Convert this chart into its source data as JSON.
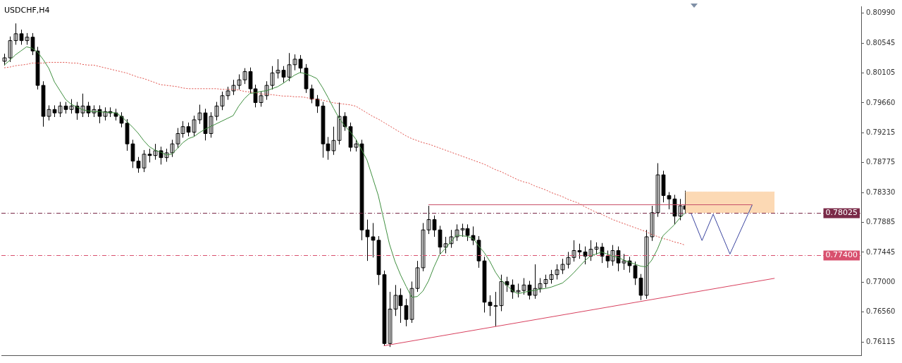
{
  "chart_data": {
    "type": "candlestick",
    "title": "USDCHF,H4",
    "color": "#000000",
    "tick_labels": "y",
    "categories": [
      null,
      null,
      null,
      null,
      null,
      null,
      null,
      null,
      null,
      null,
      null,
      null,
      null,
      null,
      null,
      null,
      null,
      null,
      null,
      null,
      null,
      null,
      null,
      null,
      null,
      null,
      null,
      null,
      null,
      null,
      null,
      null,
      null,
      null,
      null,
      null,
      null,
      null,
      null,
      null,
      null,
      null,
      null,
      null,
      null,
      null,
      null,
      null,
      null,
      null,
      null,
      null,
      null,
      null,
      null,
      null,
      null,
      null,
      null,
      null,
      null,
      null,
      null,
      null,
      null,
      null,
      null,
      null,
      null,
      null,
      null,
      null,
      null,
      null,
      null,
      null,
      null,
      null,
      null,
      null,
      null,
      null,
      null,
      null,
      null,
      null,
      null,
      null,
      null,
      null,
      null,
      null,
      null,
      null,
      null,
      null,
      null,
      null,
      null,
      null,
      null,
      null,
      null,
      null,
      null,
      null,
      null,
      null,
      null,
      null,
      null,
      null,
      null,
      null,
      null,
      null,
      null,
      null,
      null,
      null,
      null,
      null,
      null,
      null,
      null,
      null,
      null,
      null,
      null,
      null,
      null,
      null,
      null,
      null,
      null,
      null,
      null,
      null,
      null,
      null,
      null,
      null,
      null,
      null,
      null,
      null,
      null,
      null,
      null,
      null,
      null,
      null,
      null,
      null
    ],
    "ylim": [
      0.7592,
      0.8109
    ],
    "yticks": [
      {
        "value": 0.8099,
        "label": "0.80990"
      },
      0.80545,
      0.80105,
      {
        "value": 0.7966,
        "label": "0.79660"
      },
      0.79215,
      0.78775,
      {
        "value": 0.7833,
        "label": "0.78330"
      },
      0.77885,
      0.77445,
      {
        "value": 0.77,
        "label": "0.77000"
      },
      {
        "value": 0.7656,
        "label": "0.76560"
      },
      0.76115
    ],
    "ref_lines": [
      {
        "axis": "y",
        "value": 0.78025,
        "label": "0.78025",
        "color": "#7a2a48",
        "line_style": "dashed"
      },
      {
        "axis": "y",
        "value": 0.774,
        "label": "0.77400",
        "color": "#d8506e",
        "line_style": "dashed"
      }
    ],
    "ohlc": [
      [
        0.80276,
        0.80388,
        0.80215,
        0.80327
      ],
      [
        0.80327,
        0.80643,
        0.80266,
        0.80582
      ],
      [
        0.80582,
        0.80837,
        0.80521,
        0.80684
      ],
      [
        0.80684,
        0.80745,
        0.80521,
        0.80582
      ],
      [
        0.80582,
        0.80694,
        0.80521,
        0.80633
      ],
      [
        0.80633,
        0.80694,
        0.80368,
        0.80429
      ],
      [
        0.80429,
        0.8049,
        0.79858,
        0.79919
      ],
      [
        0.79919,
        0.7998,
        0.79307,
        0.7946
      ],
      [
        0.7946,
        0.79623,
        0.79399,
        0.79562
      ],
      [
        0.79562,
        0.79623,
        0.7945,
        0.79511
      ],
      [
        0.79511,
        0.79674,
        0.7945,
        0.79613
      ],
      [
        0.79613,
        0.79674,
        0.79501,
        0.79562
      ],
      [
        0.79562,
        0.79715,
        0.79501,
        0.79613
      ],
      [
        0.79613,
        0.79674,
        0.79409,
        0.79511
      ],
      [
        0.79511,
        0.79797,
        0.7945,
        0.79613
      ],
      [
        0.79613,
        0.79674,
        0.7945,
        0.79511
      ],
      [
        0.79511,
        0.79623,
        0.7945,
        0.79562
      ],
      [
        0.79562,
        0.79623,
        0.79358,
        0.7946
      ],
      [
        0.7946,
        0.79593,
        0.79399,
        0.79531
      ],
      [
        0.79531,
        0.79593,
        0.7945,
        0.79511
      ],
      [
        0.79511,
        0.79572,
        0.79399,
        0.7946
      ],
      [
        0.7946,
        0.79521,
        0.79297,
        0.79358
      ],
      [
        0.79358,
        0.79419,
        0.7895,
        0.79052
      ],
      [
        0.79052,
        0.79113,
        0.78695,
        0.78797
      ],
      [
        0.78797,
        0.78858,
        0.78624,
        0.78695
      ],
      [
        0.78695,
        0.7896,
        0.78634,
        0.78899
      ],
      [
        0.78899,
        0.78981,
        0.78777,
        0.78879
      ],
      [
        0.78879,
        0.79052,
        0.78817,
        0.7895
      ],
      [
        0.7895,
        0.79011,
        0.78746,
        0.78848
      ],
      [
        0.78848,
        0.78981,
        0.78787,
        0.78919
      ],
      [
        0.78919,
        0.79113,
        0.78858,
        0.79052
      ],
      [
        0.79052,
        0.79287,
        0.78991,
        0.79205
      ],
      [
        0.79205,
        0.79389,
        0.79144,
        0.79307
      ],
      [
        0.79307,
        0.79368,
        0.79164,
        0.79225
      ],
      [
        0.79225,
        0.7947,
        0.79164,
        0.79409
      ],
      [
        0.79409,
        0.79633,
        0.79348,
        0.79511
      ],
      [
        0.79511,
        0.79572,
        0.79103,
        0.79205
      ],
      [
        0.79205,
        0.79521,
        0.79144,
        0.7946
      ],
      [
        0.7946,
        0.79674,
        0.79399,
        0.79613
      ],
      [
        0.79613,
        0.79827,
        0.79552,
        0.79766
      ],
      [
        0.79766,
        0.79899,
        0.79705,
        0.79837
      ],
      [
        0.79837,
        0.80001,
        0.79776,
        0.79919
      ],
      [
        0.79919,
        0.80082,
        0.79858,
        0.80001
      ],
      [
        0.80001,
        0.80174,
        0.79939,
        0.80123
      ],
      [
        0.80123,
        0.80184,
        0.79807,
        0.79868
      ],
      [
        0.79868,
        0.79929,
        0.79593,
        0.79664
      ],
      [
        0.79664,
        0.79827,
        0.79603,
        0.79766
      ],
      [
        0.79766,
        0.7998,
        0.79705,
        0.79919
      ],
      [
        0.79919,
        0.80205,
        0.79858,
        0.80103
      ],
      [
        0.80103,
        0.80307,
        0.80021,
        0.80143
      ],
      [
        0.80143,
        0.80205,
        0.7996,
        0.80041
      ],
      [
        0.80041,
        0.80398,
        0.7998,
        0.80225
      ],
      [
        0.80225,
        0.80378,
        0.80143,
        0.80307
      ],
      [
        0.80307,
        0.80368,
        0.80103,
        0.80174
      ],
      [
        0.80174,
        0.80235,
        0.79807,
        0.79868
      ],
      [
        0.79868,
        0.79929,
        0.79654,
        0.79715
      ],
      [
        0.79715,
        0.79776,
        0.79511,
        0.79613
      ],
      [
        0.79613,
        0.79674,
        0.78848,
        0.79052
      ],
      [
        0.79052,
        0.79154,
        0.78817,
        0.7895
      ],
      [
        0.7895,
        0.79307,
        0.78889,
        0.79103
      ],
      [
        0.79103,
        0.79664,
        0.79042,
        0.7946
      ],
      [
        0.7946,
        0.79521,
        0.79246,
        0.79307
      ],
      [
        0.79307,
        0.79368,
        0.7894,
        0.79001
      ],
      [
        0.79001,
        0.79113,
        0.7894,
        0.79052
      ],
      [
        0.79052,
        0.79113,
        0.77624,
        0.77777
      ],
      [
        0.77777,
        0.7793,
        0.77318,
        0.77675
      ],
      [
        0.77675,
        0.77879,
        0.77369,
        0.77624
      ],
      [
        0.77624,
        0.77685,
        0.76961,
        0.77114
      ],
      [
        0.77114,
        0.77175,
        0.76063,
        0.76094
      ],
      [
        0.76094,
        0.76859,
        0.76043,
        0.76604
      ],
      [
        0.76604,
        0.76961,
        0.76502,
        0.76808
      ],
      [
        0.76808,
        0.7691,
        0.764,
        0.76655
      ],
      [
        0.76655,
        0.76757,
        0.76349,
        0.76451
      ],
      [
        0.76451,
        0.77012,
        0.764,
        0.7691
      ],
      [
        0.7691,
        0.77318,
        0.76859,
        0.77216
      ],
      [
        0.77216,
        0.77879,
        0.77165,
        0.77777
      ],
      [
        0.77777,
        0.78134,
        0.77716,
        0.7793
      ],
      [
        0.7793,
        0.77991,
        0.77675,
        0.77777
      ],
      [
        0.77777,
        0.77838,
        0.7742,
        0.77522
      ],
      [
        0.77522,
        0.77675,
        0.7743,
        0.77573
      ],
      [
        0.77573,
        0.77777,
        0.77512,
        0.77675
      ],
      [
        0.77675,
        0.77859,
        0.77614,
        0.77777
      ],
      [
        0.77777,
        0.77869,
        0.77675,
        0.77797
      ],
      [
        0.77797,
        0.77859,
        0.77614,
        0.77695
      ],
      [
        0.77695,
        0.77828,
        0.77553,
        0.77624
      ],
      [
        0.77624,
        0.77685,
        0.77216,
        0.77318
      ],
      [
        0.77318,
        0.77379,
        0.76553,
        0.76706
      ],
      [
        0.76706,
        0.76808,
        0.76502,
        0.76655
      ],
      [
        0.76655,
        0.76859,
        0.76349,
        0.76655
      ],
      [
        0.76655,
        0.77114,
        0.76573,
        0.77012
      ],
      [
        0.77012,
        0.77083,
        0.76859,
        0.76961
      ],
      [
        0.76961,
        0.77043,
        0.76757,
        0.76859
      ],
      [
        0.76859,
        0.76981,
        0.76777,
        0.76879
      ],
      [
        0.76879,
        0.77063,
        0.76818,
        0.76961
      ],
      [
        0.76961,
        0.77022,
        0.76747,
        0.76808
      ],
      [
        0.76808,
        0.77267,
        0.76757,
        0.7691
      ],
      [
        0.7691,
        0.77063,
        0.76849,
        0.76981
      ],
      [
        0.76981,
        0.77114,
        0.7692,
        0.77043
      ],
      [
        0.77043,
        0.77185,
        0.76981,
        0.77114
      ],
      [
        0.77114,
        0.77267,
        0.77043,
        0.77185
      ],
      [
        0.77185,
        0.77349,
        0.77124,
        0.77267
      ],
      [
        0.77267,
        0.77451,
        0.77206,
        0.77369
      ],
      [
        0.77369,
        0.77624,
        0.77308,
        0.77471
      ],
      [
        0.77471,
        0.77573,
        0.77349,
        0.77451
      ],
      [
        0.77451,
        0.77532,
        0.77267,
        0.77389
      ],
      [
        0.77389,
        0.77624,
        0.77318,
        0.77491
      ],
      [
        0.77491,
        0.77593,
        0.7741,
        0.77522
      ],
      [
        0.77522,
        0.77583,
        0.77287,
        0.77389
      ],
      [
        0.77389,
        0.77471,
        0.77216,
        0.77318
      ],
      [
        0.77318,
        0.77553,
        0.77247,
        0.77471
      ],
      [
        0.77471,
        0.77532,
        0.77165,
        0.77287
      ],
      [
        0.77287,
        0.7742,
        0.77185,
        0.77318
      ],
      [
        0.77318,
        0.77379,
        0.77145,
        0.77247
      ],
      [
        0.77247,
        0.77308,
        0.76961,
        0.77063
      ],
      [
        0.77063,
        0.77124,
        0.76737,
        0.76808
      ],
      [
        0.76808,
        0.77777,
        0.76757,
        0.77675
      ],
      [
        0.77675,
        0.78134,
        0.77614,
        0.78032
      ],
      [
        0.78032,
        0.78766,
        0.77971,
        0.78593
      ],
      [
        0.78593,
        0.78654,
        0.78185,
        0.78287
      ],
      [
        0.78287,
        0.78338,
        0.78083,
        0.78236
      ],
      [
        0.78236,
        0.78297,
        0.77859,
        0.77981
      ],
      [
        0.77981,
        0.78236,
        0.7792,
        0.78134
      ],
      [
        0.78134,
        0.78358,
        0.78022,
        0.78083
      ],
      null,
      null,
      null,
      null,
      null,
      null,
      null,
      null,
      null,
      null,
      null,
      null,
      null,
      null,
      null,
      null,
      null,
      null,
      null,
      null,
      null,
      null,
      null,
      null,
      null,
      null,
      null,
      null,
      null,
      null,
      null
    ],
    "series": [
      {
        "type": "line",
        "color": "#fcd9b4",
        "values": [
          null,
          null,
          null,
          null,
          null,
          null,
          null,
          null,
          null,
          null,
          null,
          null,
          null,
          null,
          null,
          null,
          null,
          null,
          null,
          null,
          null,
          null,
          null,
          null,
          null,
          null,
          null,
          null,
          null,
          null,
          null,
          null,
          null,
          null,
          null,
          null,
          null,
          null,
          null,
          null,
          null,
          null,
          null,
          null,
          null,
          null,
          null,
          null,
          null,
          null,
          null,
          null,
          null,
          null,
          null,
          null,
          null,
          null,
          null,
          null,
          null,
          null,
          null,
          null,
          null,
          null,
          null,
          null,
          null,
          null,
          null,
          null,
          null,
          null,
          null,
          null,
          null,
          null,
          null,
          null,
          null,
          null,
          null,
          null,
          null,
          null,
          null,
          null,
          null,
          null,
          null,
          null,
          null,
          null,
          null,
          null,
          null,
          null,
          null,
          null,
          null,
          null,
          null,
          null,
          null,
          null,
          null,
          null,
          null,
          null,
          null,
          null,
          null,
          null,
          null,
          null,
          null,
          null,
          null,
          null,
          null,
          null,
          0.7834,
          0.7834,
          0.7834,
          0.7834,
          0.7834,
          0.7834,
          0.7834,
          0.7834,
          0.7834,
          0.7834,
          0.7834,
          0.7834,
          0.7834,
          0.7834,
          0.7834,
          0.7834,
          0.7834,
          null,
          null,
          null,
          null,
          null,
          null,
          null,
          null,
          null,
          null,
          null,
          null,
          null,
          null,
          null
        ],
        "upper": [
          null,
          null,
          null,
          null,
          null,
          null,
          null,
          null,
          null,
          null,
          null,
          null,
          null,
          null,
          null,
          null,
          null,
          null,
          null,
          null,
          null,
          null,
          null,
          null,
          null,
          null,
          null,
          null,
          null,
          null,
          null,
          null,
          null,
          null,
          null,
          null,
          null,
          null,
          null,
          null,
          null,
          null,
          null,
          null,
          null,
          null,
          null,
          null,
          null,
          null,
          null,
          null,
          null,
          null,
          null,
          null,
          null,
          null,
          null,
          null,
          null,
          null,
          null,
          null,
          null,
          null,
          null,
          null,
          null,
          null,
          null,
          null,
          null,
          null,
          null,
          null,
          null,
          null,
          null,
          null,
          null,
          null,
          null,
          null,
          null,
          null,
          null,
          null,
          null,
          null,
          null,
          null,
          null,
          null,
          null,
          null,
          null,
          null,
          null,
          null,
          null,
          null,
          null,
          null,
          null,
          null,
          null,
          null,
          null,
          null,
          null,
          null,
          null,
          null,
          null,
          null,
          null,
          null,
          null,
          null,
          null,
          null,
          0.7834,
          0.7834,
          0.7834,
          0.7834,
          0.7834,
          0.7834,
          0.7834,
          0.7834,
          0.7834,
          0.7834,
          0.7834,
          0.7834,
          0.7834,
          0.7834,
          0.7834,
          0.7834,
          0.7834,
          null,
          null,
          null,
          null,
          null,
          null,
          null,
          null,
          null,
          null,
          null,
          null,
          null,
          null,
          null
        ],
        "lower": [
          null,
          null,
          null,
          null,
          null,
          null,
          null,
          null,
          null,
          null,
          null,
          null,
          null,
          null,
          null,
          null,
          null,
          null,
          null,
          null,
          null,
          null,
          null,
          null,
          null,
          null,
          null,
          null,
          null,
          null,
          null,
          null,
          null,
          null,
          null,
          null,
          null,
          null,
          null,
          null,
          null,
          null,
          null,
          null,
          null,
          null,
          null,
          null,
          null,
          null,
          null,
          null,
          null,
          null,
          null,
          null,
          null,
          null,
          null,
          null,
          null,
          null,
          null,
          null,
          null,
          null,
          null,
          null,
          null,
          null,
          null,
          null,
          null,
          null,
          null,
          null,
          null,
          null,
          null,
          null,
          null,
          null,
          null,
          null,
          null,
          null,
          null,
          null,
          null,
          null,
          null,
          null,
          null,
          null,
          null,
          null,
          null,
          null,
          null,
          null,
          null,
          null,
          null,
          null,
          null,
          null,
          null,
          null,
          null,
          null,
          null,
          null,
          null,
          null,
          null,
          null,
          null,
          null,
          null,
          null,
          null,
          null,
          0.7803,
          0.7803,
          0.7803,
          0.7803,
          0.7803,
          0.7803,
          0.7803,
          0.7803,
          0.7803,
          0.7803,
          0.7803,
          0.7803,
          0.7803,
          0.7803,
          0.7803,
          0.7803,
          0.7803,
          null,
          null,
          null,
          null,
          null,
          null,
          null,
          null,
          null,
          null,
          null,
          null,
          null,
          null,
          null
        ]
      },
      {
        "type": "line",
        "color": "#3f8f3f",
        "values": [
          0.8022,
          0.8029,
          0.8037,
          0.8043,
          0.8049,
          0.8047,
          0.8041,
          0.803,
          0.8017,
          0.7997,
          0.7984,
          0.7971,
          0.7964,
          0.796,
          0.7956,
          0.7954,
          0.7953,
          0.7953,
          0.7952,
          0.7952,
          0.7951,
          0.7946,
          0.7938,
          0.793,
          0.7921,
          0.791,
          0.7901,
          0.7896,
          0.7893,
          0.7889,
          0.789,
          0.7898,
          0.7907,
          0.7913,
          0.7916,
          0.7922,
          0.7927,
          0.7931,
          0.7935,
          0.7939,
          0.7943,
          0.7947,
          0.7961,
          0.7972,
          0.798,
          0.7981,
          0.7983,
          0.7984,
          0.7987,
          0.799,
          0.7995,
          0.8001,
          0.8007,
          0.8011,
          0.8009,
          0.8006,
          0.8002,
          0.7989,
          0.7974,
          0.7958,
          0.7943,
          0.7932,
          0.7923,
          0.7912,
          0.7897,
          0.7881,
          0.7855,
          0.7829,
          0.7793,
          0.7757,
          0.7731,
          0.7711,
          0.7694,
          0.7678,
          0.7679,
          0.7687,
          0.7702,
          0.7723,
          0.7741,
          0.775,
          0.776,
          0.777,
          0.7769,
          0.7768,
          0.7765,
          0.7754,
          0.7744,
          0.7731,
          0.7715,
          0.7703,
          0.7696,
          0.7688,
          0.7683,
          0.7685,
          0.7687,
          0.7688,
          0.769,
          0.7691,
          0.7693,
          0.7696,
          0.7699,
          0.7706,
          0.7714,
          0.7723,
          0.7732,
          0.7739,
          0.7742,
          0.7745,
          0.7742,
          0.7739,
          0.7737,
          0.7733,
          0.773,
          0.7727,
          0.7724,
          0.7723,
          0.7733,
          0.7749,
          0.7769,
          0.7777,
          0.7785,
          0.7795,
          0.7803,
          null,
          null,
          null,
          null,
          null,
          null,
          null,
          null,
          null,
          null,
          null,
          null,
          null,
          null,
          null,
          null,
          null,
          null,
          null,
          null,
          null,
          null,
          null,
          null,
          null,
          null,
          null,
          null,
          null,
          null,
          null
        ]
      },
      {
        "type": "line",
        "color": "#e0504a",
        "line_style": "dotted",
        "values": [
          0.8018,
          0.8019,
          0.8021,
          0.8022,
          0.8023,
          0.8025,
          0.8025,
          0.8025,
          0.8026,
          0.8026,
          0.8026,
          0.8026,
          0.8025,
          0.8025,
          0.8023,
          0.8022,
          0.8022,
          0.802,
          0.8018,
          0.8016,
          0.8014,
          0.8012,
          0.801,
          0.8007,
          0.8004,
          0.8002,
          0.7999,
          0.7996,
          0.7993,
          0.7992,
          0.7991,
          0.799,
          0.7988,
          0.7987,
          0.7987,
          0.7987,
          0.7987,
          0.7987,
          0.7987,
          0.7986,
          0.7986,
          0.7986,
          0.7985,
          0.7983,
          0.7982,
          0.7981,
          0.7979,
          0.7979,
          0.7978,
          0.7977,
          0.7976,
          0.7976,
          0.7975,
          0.7975,
          0.7974,
          0.7972,
          0.7971,
          0.797,
          0.7968,
          0.7966,
          0.7965,
          0.7964,
          0.7963,
          0.7961,
          0.7956,
          0.7951,
          0.7946,
          0.7942,
          0.7937,
          0.7932,
          0.7927,
          0.7922,
          0.7917,
          0.7913,
          0.791,
          0.7907,
          0.7905,
          0.7902,
          0.7899,
          0.7896,
          0.7893,
          0.789,
          0.7887,
          0.7884,
          0.7881,
          0.7878,
          0.7875,
          0.7871,
          0.7867,
          0.7864,
          0.786,
          0.7856,
          0.7852,
          0.7849,
          0.7847,
          0.7843,
          0.784,
          0.7837,
          0.7833,
          0.783,
          0.7827,
          0.7823,
          0.782,
          0.7817,
          0.7812,
          0.7808,
          0.7804,
          0.7801,
          0.7797,
          0.7793,
          0.779,
          0.7787,
          0.7784,
          0.7781,
          0.7778,
          0.7775,
          0.7771,
          0.7768,
          0.7765,
          0.7763,
          0.776,
          0.7758,
          0.7755,
          null,
          null,
          null,
          null,
          null,
          null,
          null,
          null,
          null,
          null,
          null,
          null,
          null,
          null,
          null,
          null,
          null,
          null,
          null,
          null,
          null,
          null,
          null,
          null,
          null,
          null,
          null,
          null,
          null,
          null,
          null
        ]
      },
      {
        "type": "line",
        "color": "#c8506a",
        "values": [
          null,
          null,
          null,
          null,
          null,
          null,
          null,
          null,
          null,
          null,
          null,
          null,
          null,
          null,
          null,
          null,
          null,
          null,
          null,
          null,
          null,
          null,
          null,
          null,
          null,
          null,
          null,
          null,
          null,
          null,
          null,
          null,
          null,
          null,
          null,
          null,
          null,
          null,
          null,
          null,
          null,
          null,
          null,
          null,
          null,
          null,
          null,
          null,
          null,
          null,
          null,
          null,
          null,
          null,
          null,
          null,
          null,
          null,
          null,
          null,
          null,
          null,
          null,
          null,
          null,
          null,
          null,
          null,
          null,
          null,
          null,
          null,
          null,
          null,
          null,
          null,
          0.7815,
          null,
          null,
          null,
          null,
          null,
          null,
          null,
          null,
          null,
          null,
          null,
          null,
          null,
          null,
          null,
          null,
          null,
          null,
          null,
          null,
          null,
          null,
          null,
          null,
          null,
          null,
          null,
          null,
          null,
          null,
          null,
          null,
          null,
          null,
          null,
          null,
          null,
          null,
          null,
          null,
          null,
          null,
          null,
          null,
          null,
          null,
          null,
          null,
          null,
          null,
          null,
          null,
          null,
          null,
          null,
          null,
          null,
          0.7815,
          null,
          null,
          null,
          null,
          null,
          null,
          null,
          null,
          null,
          null,
          null,
          null,
          null,
          null,
          null,
          null,
          null,
          null,
          null
        ]
      },
      {
        "type": "line",
        "color": "#d8405e",
        "values": [
          null,
          null,
          null,
          null,
          null,
          null,
          null,
          null,
          null,
          null,
          null,
          null,
          null,
          null,
          null,
          null,
          null,
          null,
          null,
          null,
          null,
          null,
          null,
          null,
          null,
          null,
          null,
          null,
          null,
          null,
          null,
          null,
          null,
          null,
          null,
          null,
          null,
          null,
          null,
          null,
          null,
          null,
          null,
          null,
          null,
          null,
          null,
          null,
          null,
          null,
          null,
          null,
          null,
          null,
          null,
          null,
          null,
          null,
          null,
          null,
          null,
          null,
          null,
          null,
          null,
          null,
          null,
          null,
          0.7606,
          null,
          null,
          null,
          null,
          null,
          null,
          null,
          null,
          null,
          null,
          null,
          null,
          null,
          null,
          null,
          null,
          null,
          null,
          null,
          null,
          null,
          null,
          null,
          null,
          null,
          null,
          null,
          null,
          null,
          null,
          null,
          null,
          null,
          null,
          null,
          null,
          null,
          null,
          null,
          null,
          null,
          null,
          null,
          null,
          null,
          null,
          null,
          null,
          null,
          null,
          null,
          null,
          null,
          null,
          null,
          null,
          null,
          null,
          null,
          null,
          null,
          null,
          null,
          null,
          null,
          null,
          null,
          null,
          null,
          0.7706,
          null,
          null,
          null,
          null,
          null,
          null,
          null,
          null,
          null,
          null,
          null,
          null,
          null,
          null,
          null
        ]
      },
      {
        "type": "line",
        "color": "#3c46a0",
        "values": [
          null,
          null,
          null,
          null,
          null,
          null,
          null,
          null,
          null,
          null,
          null,
          null,
          null,
          null,
          null,
          null,
          null,
          null,
          null,
          null,
          null,
          null,
          null,
          null,
          null,
          null,
          null,
          null,
          null,
          null,
          null,
          null,
          null,
          null,
          null,
          null,
          null,
          null,
          null,
          null,
          null,
          null,
          null,
          null,
          null,
          null,
          null,
          null,
          null,
          null,
          null,
          null,
          null,
          null,
          null,
          null,
          null,
          null,
          null,
          null,
          null,
          null,
          null,
          null,
          null,
          null,
          null,
          null,
          null,
          null,
          null,
          null,
          null,
          null,
          null,
          null,
          null,
          null,
          null,
          null,
          null,
          null,
          null,
          null,
          null,
          null,
          null,
          null,
          null,
          null,
          null,
          null,
          null,
          null,
          null,
          null,
          null,
          null,
          null,
          null,
          null,
          null,
          null,
          null,
          null,
          null,
          null,
          null,
          null,
          null,
          null,
          null,
          null,
          null,
          null,
          null,
          null,
          null,
          null,
          null,
          null,
          null,
          null,
          0.7803,
          null,
          0.7762,
          null,
          0.7801,
          null,
          null,
          0.7742,
          null,
          null,
          null,
          0.7815,
          null,
          null,
          null,
          null,
          null,
          null,
          null,
          null,
          null,
          null,
          null,
          null,
          null,
          null,
          null,
          null,
          null,
          null,
          null
        ]
      }
    ]
  }
}
